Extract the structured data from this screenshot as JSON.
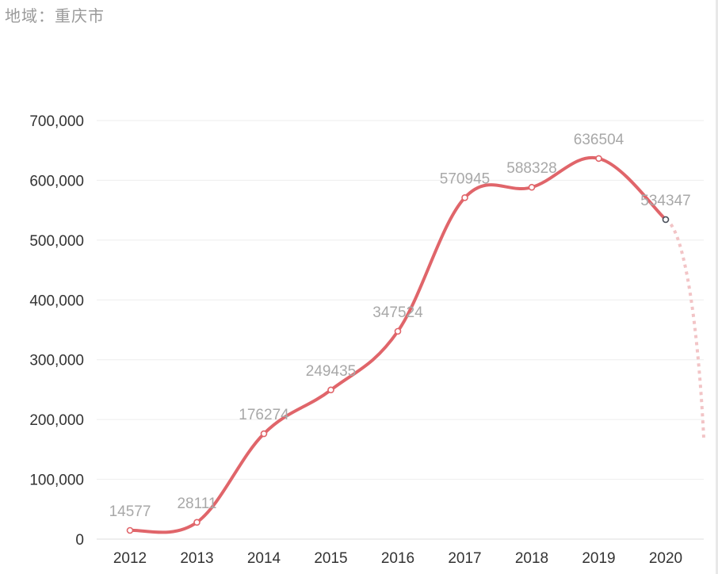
{
  "header": {
    "region_label": "地域：",
    "region_value": "重庆市"
  },
  "colors": {
    "line": "#e0656a",
    "forecast": "#f2c4c6",
    "grid": "#eeeeee",
    "tick_text": "#333333",
    "data_label": "#a8a8a8",
    "last_point": "#4a4f5a"
  },
  "chart_data": {
    "type": "line",
    "title": "",
    "xlabel": "",
    "ylabel": "",
    "categories": [
      "2012",
      "2013",
      "2014",
      "2015",
      "2016",
      "2017",
      "2018",
      "2019",
      "2020"
    ],
    "series": [
      {
        "values": [
          14577,
          28111,
          176274,
          249435,
          347524,
          570945,
          588328,
          636504,
          534347
        ]
      }
    ],
    "data_labels": [
      "14577",
      "28111",
      "176274",
      "249435",
      "347524",
      "570945",
      "588328",
      "636504",
      "534347"
    ],
    "yticks": [
      "0",
      "100,000",
      "200,000",
      "300,000",
      "400,000",
      "500,000",
      "600,000",
      "700,000"
    ],
    "ylim": [
      0,
      700000
    ],
    "grid": true,
    "smooth": true,
    "forecast_continuation": true
  }
}
